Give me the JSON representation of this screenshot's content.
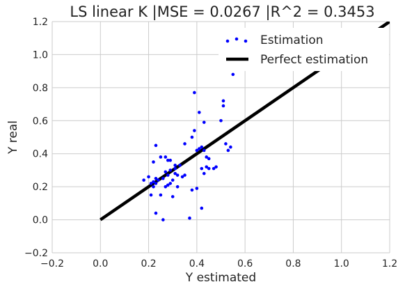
{
  "chart_data": {
    "type": "scatter",
    "title": "LS linear K |MSE = 0.0267 |R^2 = 0.3453",
    "xlabel": "Y estimated",
    "ylabel": "Y real",
    "xlim": [
      -0.2,
      1.2
    ],
    "ylim": [
      -0.2,
      1.2
    ],
    "xticks": [
      "−0.2",
      "0.0",
      "0.2",
      "0.4",
      "0.6",
      "0.8",
      "1.0",
      "1.2"
    ],
    "yticks": [
      "−0.2",
      "0.0",
      "0.2",
      "0.4",
      "0.6",
      "0.8",
      "1.0",
      "1.2"
    ],
    "grid": true,
    "legend_position": "top-right",
    "series": [
      {
        "name": "Estimation",
        "kind": "scatter",
        "color": "#0000ff",
        "points": [
          [
            0.18,
            0.24
          ],
          [
            0.2,
            0.26
          ],
          [
            0.21,
            0.22
          ],
          [
            0.21,
            0.15
          ],
          [
            0.22,
            0.23
          ],
          [
            0.22,
            0.2
          ],
          [
            0.23,
            0.25
          ],
          [
            0.23,
            0.45
          ],
          [
            0.23,
            0.22
          ],
          [
            0.24,
            0.24
          ],
          [
            0.22,
            0.35
          ],
          [
            0.23,
            0.04
          ],
          [
            0.25,
            0.15
          ],
          [
            0.25,
            0.38
          ],
          [
            0.26,
            0.0
          ],
          [
            0.26,
            0.25
          ],
          [
            0.27,
            0.29
          ],
          [
            0.27,
            0.38
          ],
          [
            0.27,
            0.2
          ],
          [
            0.28,
            0.21
          ],
          [
            0.28,
            0.27
          ],
          [
            0.28,
            0.36
          ],
          [
            0.29,
            0.36
          ],
          [
            0.29,
            0.3
          ],
          [
            0.29,
            0.22
          ],
          [
            0.3,
            0.24
          ],
          [
            0.3,
            0.14
          ],
          [
            0.31,
            0.28
          ],
          [
            0.31,
            0.33
          ],
          [
            0.31,
            0.31
          ],
          [
            0.32,
            0.2
          ],
          [
            0.32,
            0.27
          ],
          [
            0.33,
            0.33
          ],
          [
            0.34,
            0.26
          ],
          [
            0.35,
            0.27
          ],
          [
            0.35,
            0.46
          ],
          [
            0.37,
            0.01
          ],
          [
            0.38,
            0.18
          ],
          [
            0.38,
            0.5
          ],
          [
            0.39,
            0.54
          ],
          [
            0.39,
            0.77
          ],
          [
            0.4,
            0.42
          ],
          [
            0.4,
            0.19
          ],
          [
            0.41,
            0.43
          ],
          [
            0.41,
            0.65
          ],
          [
            0.42,
            0.07
          ],
          [
            0.42,
            0.44
          ],
          [
            0.42,
            0.31
          ],
          [
            0.43,
            0.59
          ],
          [
            0.43,
            0.28
          ],
          [
            0.43,
            0.42
          ],
          [
            0.44,
            0.32
          ],
          [
            0.44,
            0.38
          ],
          [
            0.45,
            0.37
          ],
          [
            0.45,
            0.31
          ],
          [
            0.47,
            0.31
          ],
          [
            0.48,
            0.32
          ],
          [
            0.5,
            0.6
          ],
          [
            0.51,
            0.72
          ],
          [
            0.51,
            0.69
          ],
          [
            0.52,
            0.46
          ],
          [
            0.53,
            0.42
          ],
          [
            0.54,
            0.44
          ],
          [
            0.55,
            0.88
          ]
        ]
      },
      {
        "name": "Perfect estimation",
        "kind": "line",
        "color": "#000000",
        "x": [
          0.0,
          1.2
        ],
        "y": [
          0.0,
          1.2
        ]
      }
    ]
  }
}
